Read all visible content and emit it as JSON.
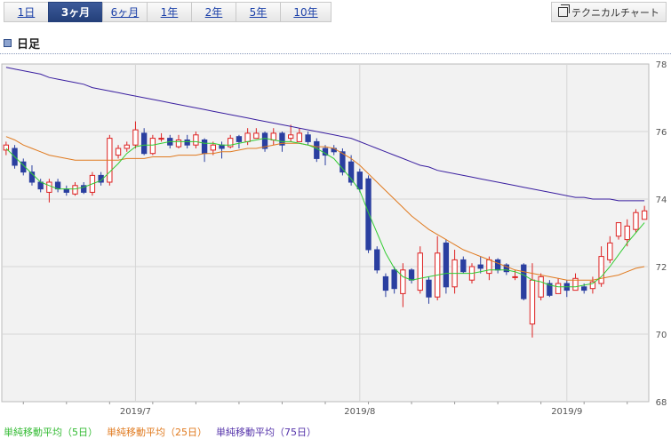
{
  "tabs": [
    {
      "label": "1日",
      "active": false
    },
    {
      "label": "3ヶ月",
      "active": true
    },
    {
      "label": "6ヶ月",
      "active": false
    },
    {
      "label": "1年",
      "active": false
    },
    {
      "label": "2年",
      "active": false
    },
    {
      "label": "5年",
      "active": false
    },
    {
      "label": "10年",
      "active": false
    }
  ],
  "technical_button": {
    "label": "テクニカルチャート",
    "icon": "external-window-icon"
  },
  "section": {
    "title": "日足",
    "icon": "square-icon"
  },
  "legend": {
    "ma5": "単純移動平均（5日）",
    "ma25": "単純移動平均（25日）",
    "ma75": "単純移動平均（75日）"
  },
  "colors": {
    "up": "#dd2222",
    "down": "#2a3fa0",
    "ma5": "#33cc33",
    "ma25": "#e07a1f",
    "ma75": "#3a1fa0",
    "plot_bg": "#f2f2f2",
    "active_tab": "#2c4a86"
  },
  "chart_data": {
    "type": "candlestick",
    "title": "",
    "xlabel": "",
    "ylabel": "",
    "ylim": [
      68,
      78
    ],
    "yticks": [
      "78",
      "76",
      "74",
      "72",
      "70",
      "68"
    ],
    "xticks": [
      {
        "label": "2019/7",
        "index": 15
      },
      {
        "label": "2019/8",
        "index": 41
      },
      {
        "label": "2019/9",
        "index": 65
      }
    ],
    "grid": true,
    "candles": [
      [
        75.45,
        75.6,
        75.7,
        75.3
      ],
      [
        75.5,
        75.0,
        75.6,
        74.9
      ],
      [
        75.1,
        74.8,
        75.2,
        74.7
      ],
      [
        74.8,
        74.5,
        75.0,
        74.4
      ],
      [
        74.5,
        74.3,
        74.6,
        74.2
      ],
      [
        74.2,
        74.5,
        74.6,
        73.9
      ],
      [
        74.5,
        74.3,
        74.6,
        74.2
      ],
      [
        74.3,
        74.2,
        74.4,
        74.1
      ],
      [
        74.15,
        74.4,
        74.5,
        74.1
      ],
      [
        74.4,
        74.2,
        74.5,
        74.15
      ],
      [
        74.2,
        74.7,
        74.8,
        74.1
      ],
      [
        74.7,
        74.5,
        74.8,
        74.4
      ],
      [
        74.5,
        75.8,
        75.9,
        74.4
      ],
      [
        75.3,
        75.5,
        75.6,
        75.2
      ],
      [
        75.5,
        75.6,
        75.7,
        75.4
      ],
      [
        75.6,
        76.05,
        76.3,
        75.5
      ],
      [
        75.95,
        75.35,
        76.1,
        75.3
      ],
      [
        75.35,
        75.8,
        75.9,
        75.3
      ],
      [
        75.8,
        75.8,
        75.95,
        75.7
      ],
      [
        75.8,
        75.6,
        75.9,
        75.5
      ],
      [
        75.55,
        75.75,
        75.9,
        75.5
      ],
      [
        75.75,
        75.6,
        75.9,
        75.5
      ],
      [
        75.6,
        75.9,
        76.0,
        75.5
      ],
      [
        75.75,
        75.35,
        75.8,
        75.1
      ],
      [
        75.45,
        75.6,
        75.7,
        75.3
      ],
      [
        75.6,
        75.5,
        75.7,
        75.2
      ],
      [
        75.55,
        75.8,
        75.9,
        75.5
      ],
      [
        75.85,
        75.7,
        75.9,
        75.5
      ],
      [
        75.7,
        75.95,
        76.1,
        75.6
      ],
      [
        75.8,
        75.95,
        76.1,
        75.8
      ],
      [
        75.95,
        75.5,
        76.0,
        75.4
      ],
      [
        75.75,
        75.95,
        76.1,
        75.6
      ],
      [
        75.95,
        75.6,
        76.0,
        75.4
      ],
      [
        75.8,
        75.9,
        76.2,
        75.7
      ],
      [
        75.7,
        75.95,
        76.1,
        75.7
      ],
      [
        75.9,
        75.7,
        76.0,
        75.6
      ],
      [
        75.7,
        75.2,
        75.8,
        75.1
      ],
      [
        75.5,
        75.3,
        75.6,
        75.0
      ],
      [
        75.5,
        75.4,
        75.6,
        75.3
      ],
      [
        75.4,
        74.8,
        75.5,
        74.7
      ],
      [
        75.1,
        74.5,
        75.3,
        74.4
      ],
      [
        74.8,
        74.3,
        74.9,
        74.2
      ],
      [
        74.6,
        72.5,
        74.7,
        72.4
      ],
      [
        72.5,
        71.9,
        72.6,
        71.8
      ],
      [
        71.7,
        71.3,
        71.8,
        71.1
      ],
      [
        71.9,
        71.35,
        72.0,
        71.2
      ],
      [
        71.2,
        71.9,
        72.1,
        70.8
      ],
      [
        71.9,
        71.6,
        71.95,
        71.5
      ],
      [
        71.3,
        72.4,
        72.6,
        71.2
      ],
      [
        71.6,
        71.1,
        71.7,
        70.9
      ],
      [
        71.1,
        72.4,
        72.9,
        71.0
      ],
      [
        72.7,
        71.4,
        72.8,
        71.2
      ],
      [
        71.4,
        72.2,
        72.5,
        71.2
      ],
      [
        72.2,
        71.85,
        72.3,
        71.8
      ],
      [
        71.6,
        72.0,
        72.1,
        71.5
      ],
      [
        72.05,
        71.95,
        72.3,
        71.8
      ],
      [
        71.8,
        72.2,
        72.3,
        71.6
      ],
      [
        72.2,
        71.9,
        72.25,
        71.8
      ],
      [
        72.05,
        71.85,
        72.1,
        71.75
      ],
      [
        71.7,
        71.7,
        71.9,
        71.6
      ],
      [
        72.05,
        71.05,
        72.1,
        71.0
      ],
      [
        70.3,
        71.6,
        72.1,
        69.9
      ],
      [
        71.1,
        71.7,
        71.8,
        71.0
      ],
      [
        71.5,
        71.15,
        71.6,
        71.1
      ],
      [
        71.2,
        71.5,
        71.65,
        71.2
      ],
      [
        71.5,
        71.3,
        71.6,
        71.1
      ],
      [
        71.3,
        71.65,
        71.8,
        71.3
      ],
      [
        71.4,
        71.3,
        71.5,
        71.2
      ],
      [
        71.35,
        71.55,
        71.7,
        71.2
      ],
      [
        71.5,
        72.3,
        72.6,
        71.4
      ],
      [
        72.2,
        72.7,
        72.9,
        72.1
      ],
      [
        72.9,
        73.3,
        73.3,
        72.8
      ],
      [
        72.8,
        73.2,
        73.4,
        72.6
      ],
      [
        73.1,
        73.6,
        73.7,
        73.0
      ],
      [
        73.4,
        73.65,
        73.8,
        73.4
      ]
    ],
    "ma5": [
      75.5,
      75.25,
      75.0,
      74.75,
      74.5,
      74.4,
      74.3,
      74.3,
      74.3,
      74.35,
      74.45,
      74.55,
      74.8,
      75.05,
      75.35,
      75.55,
      75.6,
      75.6,
      75.65,
      75.7,
      75.7,
      75.7,
      75.7,
      75.65,
      75.65,
      75.6,
      75.6,
      75.65,
      75.7,
      75.75,
      75.8,
      75.75,
      75.7,
      75.7,
      75.65,
      75.6,
      75.5,
      75.35,
      75.2,
      74.9,
      74.6,
      74.25,
      73.6,
      73.0,
      72.4,
      71.95,
      71.7,
      71.6,
      71.65,
      71.7,
      71.75,
      71.8,
      71.8,
      71.8,
      71.8,
      71.85,
      71.9,
      71.9,
      71.9,
      71.85,
      71.75,
      71.6,
      71.55,
      71.45,
      71.4,
      71.4,
      71.4,
      71.45,
      71.5,
      71.7,
      72.0,
      72.35,
      72.7,
      73.0,
      73.3
    ],
    "ma25": [
      75.85,
      75.75,
      75.6,
      75.5,
      75.4,
      75.3,
      75.25,
      75.2,
      75.15,
      75.15,
      75.15,
      75.15,
      75.15,
      75.15,
      75.2,
      75.2,
      75.2,
      75.25,
      75.25,
      75.25,
      75.3,
      75.3,
      75.3,
      75.35,
      75.35,
      75.4,
      75.4,
      75.45,
      75.5,
      75.5,
      75.55,
      75.6,
      75.65,
      75.65,
      75.65,
      75.6,
      75.55,
      75.55,
      75.5,
      75.35,
      75.2,
      75.0,
      74.75,
      74.5,
      74.25,
      74.0,
      73.75,
      73.5,
      73.3,
      73.1,
      72.95,
      72.8,
      72.65,
      72.5,
      72.4,
      72.3,
      72.2,
      72.1,
      72.0,
      71.9,
      71.85,
      71.8,
      71.75,
      71.7,
      71.65,
      71.6,
      71.6,
      71.6,
      71.6,
      71.65,
      71.7,
      71.75,
      71.85,
      71.95,
      72.0
    ],
    "ma75": [
      77.9,
      77.85,
      77.8,
      77.75,
      77.7,
      77.6,
      77.55,
      77.5,
      77.45,
      77.4,
      77.3,
      77.25,
      77.2,
      77.15,
      77.1,
      77.05,
      77.0,
      76.95,
      76.9,
      76.85,
      76.8,
      76.75,
      76.7,
      76.65,
      76.6,
      76.55,
      76.5,
      76.45,
      76.4,
      76.35,
      76.3,
      76.25,
      76.2,
      76.15,
      76.1,
      76.05,
      76.0,
      75.95,
      75.9,
      75.85,
      75.8,
      75.7,
      75.6,
      75.5,
      75.4,
      75.3,
      75.2,
      75.1,
      75.0,
      74.95,
      74.85,
      74.8,
      74.75,
      74.7,
      74.65,
      74.6,
      74.55,
      74.5,
      74.45,
      74.4,
      74.35,
      74.3,
      74.25,
      74.2,
      74.15,
      74.1,
      74.05,
      74.05,
      74.0,
      74.0,
      74.0,
      73.95,
      73.95,
      73.95,
      73.95
    ]
  }
}
